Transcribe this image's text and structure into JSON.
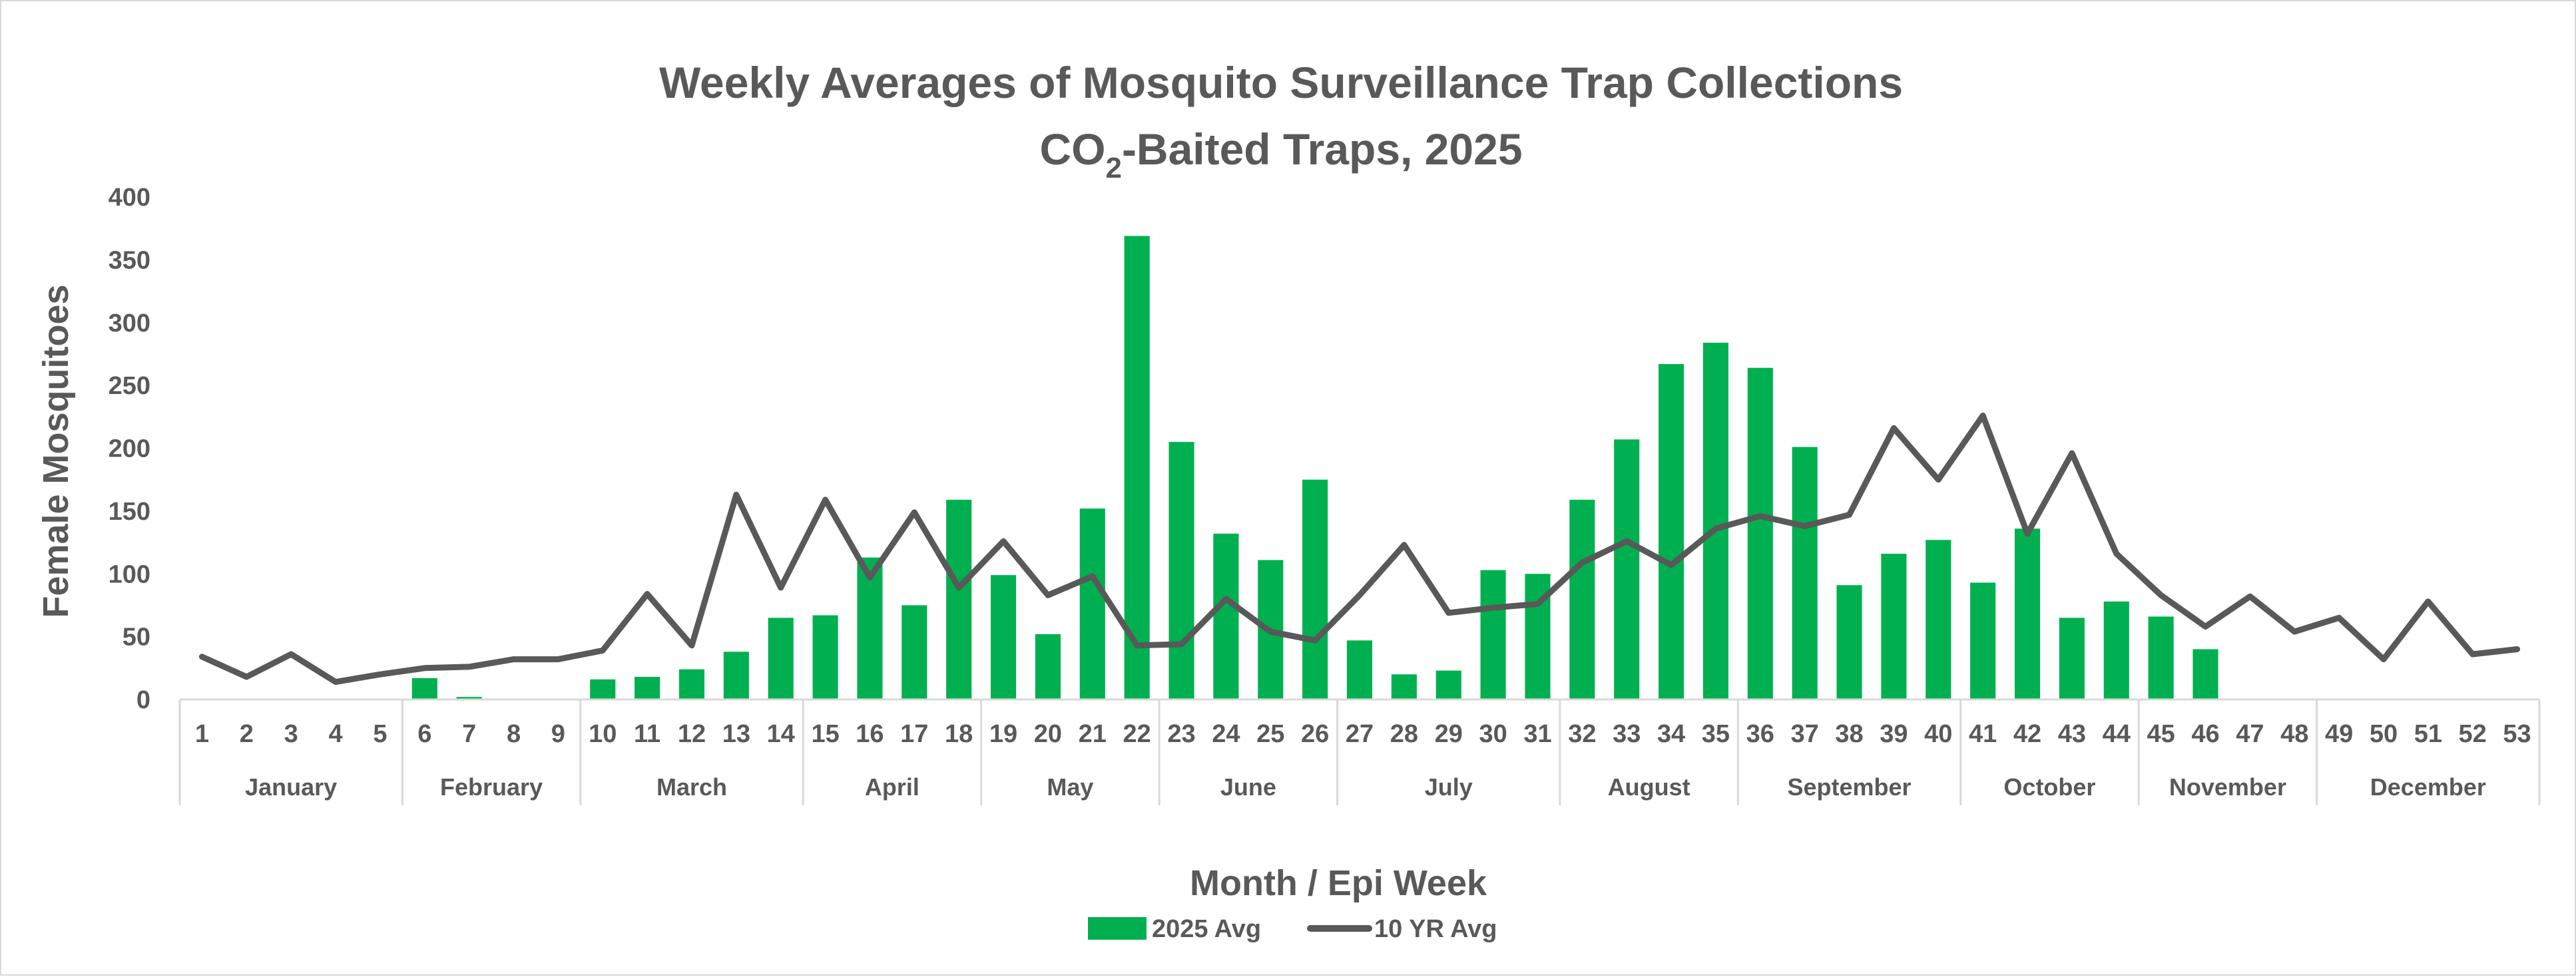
{
  "chart_data": {
    "type": "bar",
    "title_line1": "Weekly Averages of Mosquito Surveillance Trap Collections",
    "title_line2_prefix": "CO",
    "title_line2_sub": "2",
    "title_line2_suffix": "-Baited Traps, 2025",
    "xlabel": "Month / Epi Week",
    "ylabel": "Female Mosquitoes",
    "ylim": [
      0,
      400
    ],
    "yticks": [
      0,
      50,
      100,
      150,
      200,
      250,
      300,
      350,
      400
    ],
    "weeks": [
      "1",
      "2",
      "3",
      "4",
      "5",
      "6",
      "7",
      "8",
      "9",
      "10",
      "11",
      "12",
      "13",
      "14",
      "15",
      "16",
      "17",
      "18",
      "19",
      "20",
      "21",
      "22",
      "23",
      "24",
      "25",
      "26",
      "27",
      "28",
      "29",
      "30",
      "31",
      "32",
      "33",
      "34",
      "35",
      "36",
      "37",
      "38",
      "39",
      "40",
      "41",
      "42",
      "43",
      "44",
      "45",
      "46",
      "47",
      "48",
      "49",
      "50",
      "51",
      "52",
      "53"
    ],
    "months": [
      {
        "name": "January",
        "start_week": 1,
        "end_week": 5
      },
      {
        "name": "February",
        "start_week": 6,
        "end_week": 9
      },
      {
        "name": "March",
        "start_week": 10,
        "end_week": 14
      },
      {
        "name": "April",
        "start_week": 15,
        "end_week": 18
      },
      {
        "name": "May",
        "start_week": 19,
        "end_week": 22
      },
      {
        "name": "June",
        "start_week": 23,
        "end_week": 26
      },
      {
        "name": "July",
        "start_week": 27,
        "end_week": 31
      },
      {
        "name": "August",
        "start_week": 32,
        "end_week": 35
      },
      {
        "name": "September",
        "start_week": 36,
        "end_week": 40
      },
      {
        "name": "October",
        "start_week": 41,
        "end_week": 44
      },
      {
        "name": "November",
        "start_week": 45,
        "end_week": 48
      },
      {
        "name": "December",
        "start_week": 49,
        "end_week": 53
      }
    ],
    "series": [
      {
        "name": "2025 Avg",
        "type": "bar",
        "color": "#00b050",
        "values": [
          0,
          0,
          0,
          0,
          0,
          17,
          2,
          0,
          0,
          16,
          18,
          24,
          38,
          65,
          67,
          113,
          75,
          159,
          99,
          52,
          152,
          369,
          205,
          132,
          111,
          175,
          47,
          20,
          23,
          103,
          100,
          159,
          207,
          267,
          284,
          264,
          201,
          91,
          116,
          127,
          93,
          136,
          65,
          78,
          66,
          40,
          null,
          null,
          null,
          null,
          null,
          null,
          null
        ]
      },
      {
        "name": "10 YR Avg",
        "type": "line",
        "color": "#595959",
        "values": [
          34,
          18,
          36,
          14,
          20,
          25,
          26,
          32,
          32,
          39,
          84,
          43,
          163,
          89,
          159,
          97,
          149,
          89,
          126,
          83,
          98,
          43,
          44,
          80,
          54,
          47,
          83,
          123,
          69,
          73,
          76,
          109,
          126,
          107,
          136,
          146,
          138,
          147,
          216,
          175,
          226,
          132,
          196,
          116,
          83,
          58,
          82,
          54,
          65,
          32,
          78,
          36,
          40
        ]
      }
    ]
  }
}
